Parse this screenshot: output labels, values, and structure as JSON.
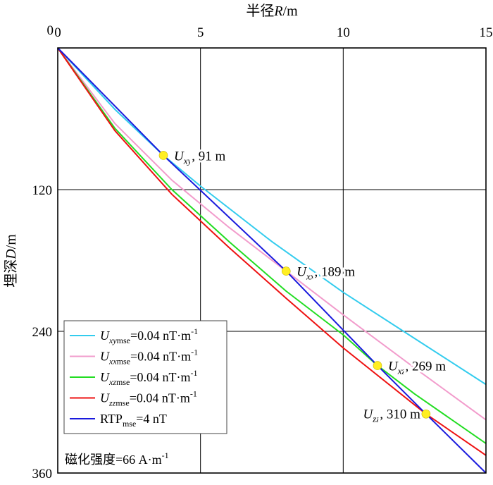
{
  "chart_data": {
    "type": "line",
    "xaxis": {
      "label_prefix": "半径",
      "label_symbol": "R",
      "label_unit": "/m",
      "range": [
        0,
        15
      ],
      "ticks": [
        0,
        5,
        10,
        15
      ],
      "position": "top"
    },
    "yaxis": {
      "label_prefix": "埋深",
      "label_symbol": "D",
      "label_unit": "/m",
      "range": [
        0,
        360
      ],
      "inverted": true,
      "ticks": [
        120,
        240,
        360
      ]
    },
    "grid": true,
    "series": [
      {
        "key": "uxy",
        "color": "#33ccee",
        "points": [
          [
            0,
            0
          ],
          [
            2,
            52
          ],
          [
            3.7,
            91
          ],
          [
            5,
            117
          ],
          [
            7.5,
            164
          ],
          [
            10,
            207
          ],
          [
            12.5,
            246
          ],
          [
            15,
            285
          ]
        ]
      },
      {
        "key": "uxx",
        "color": "#f29ccc",
        "points": [
          [
            0,
            0
          ],
          [
            2,
            64
          ],
          [
            4,
            112
          ],
          [
            6,
            152
          ],
          [
            8,
            189
          ],
          [
            10,
            226
          ],
          [
            12.5,
            271
          ],
          [
            15,
            315
          ]
        ]
      },
      {
        "key": "uxz",
        "color": "#22dd22",
        "points": [
          [
            0,
            0
          ],
          [
            2,
            68
          ],
          [
            4,
            120
          ],
          [
            6,
            164
          ],
          [
            8,
            206
          ],
          [
            10,
            243
          ],
          [
            11.2,
            269
          ],
          [
            12.5,
            293
          ],
          [
            15,
            335
          ]
        ]
      },
      {
        "key": "uzz",
        "color": "#ee1111",
        "points": [
          [
            0,
            0
          ],
          [
            2,
            70
          ],
          [
            4,
            124
          ],
          [
            6,
            169
          ],
          [
            8,
            212
          ],
          [
            10,
            254
          ],
          [
            12.9,
            310
          ],
          [
            15,
            345
          ]
        ]
      },
      {
        "key": "rtp",
        "color": "#1a1add",
        "points": [
          [
            0,
            0
          ],
          [
            3.7,
            91
          ],
          [
            8,
            189
          ],
          [
            11.2,
            269
          ],
          [
            12.9,
            310
          ],
          [
            15,
            360
          ]
        ]
      }
    ],
    "markers": [
      {
        "x": 3.7,
        "y": 91,
        "sym": "U",
        "sub": "xy",
        "value": ", 91 m",
        "side": "right"
      },
      {
        "x": 8.0,
        "y": 189,
        "sym": "U",
        "sub": "xx",
        "value": ", 189 m",
        "side": "right"
      },
      {
        "x": 11.2,
        "y": 269,
        "sym": "U",
        "sub": "xz",
        "value": ", 269 m",
        "side": "right"
      },
      {
        "x": 12.9,
        "y": 310,
        "sym": "U",
        "sub": "zz",
        "value": ", 310 m",
        "side": "left"
      }
    ],
    "marker_color": "#ffee22",
    "legend": {
      "position": "bottom-left",
      "entries": [
        {
          "color": "#33ccee",
          "sym": "U",
          "sub": "xy",
          "sub2": "mse",
          "text": "=0.04 nT·m",
          "sup": "-1"
        },
        {
          "color": "#f29ccc",
          "sym": "U",
          "sub": "xx",
          "sub2": "mse",
          "text": "=0.04 nT·m",
          "sup": "-1"
        },
        {
          "color": "#22dd22",
          "sym": "U",
          "sub": "xz",
          "sub2": "mse",
          "text": "=0.04 nT·m",
          "sup": "-1"
        },
        {
          "color": "#ee1111",
          "sym": "U",
          "sub": "zz",
          "sub2": "mse",
          "text": "=0.04 nT·m",
          "sup": "-1"
        },
        {
          "color": "#1a1add",
          "sym": "RTP",
          "sub": "",
          "sub2": "mse",
          "text": "=4 nT",
          "sup": ""
        }
      ]
    },
    "annotation": {
      "text": "磁化强度=66 A·m",
      "sup": "-1"
    }
  }
}
